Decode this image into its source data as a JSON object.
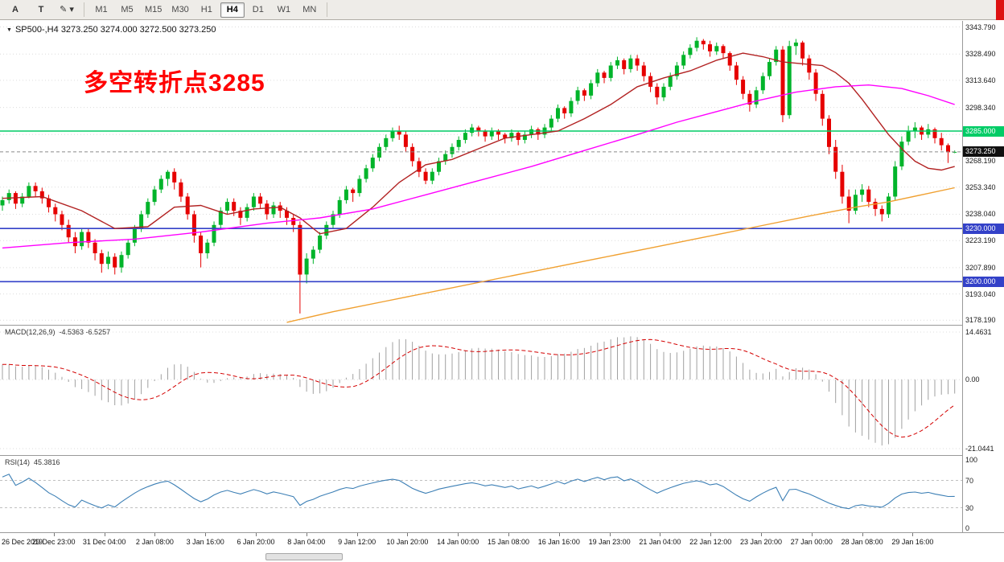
{
  "toolbar": {
    "tool_buttons": [
      {
        "label": "A",
        "name": "tool-a-button"
      },
      {
        "label": "T",
        "name": "tool-text-button"
      },
      {
        "label": "✎ ▾",
        "name": "draw-tools-button"
      }
    ],
    "timeframes": [
      "M1",
      "M5",
      "M15",
      "M30",
      "H1",
      "H4",
      "D1",
      "W1",
      "MN"
    ],
    "active_timeframe": "H4"
  },
  "header": {
    "symbol": "SP500-,H4",
    "ohlc_text": "3273.250 3274.000 3272.500 3273.250"
  },
  "annotation": {
    "text": "多空转折点3285",
    "color": "#ff0000"
  },
  "macd": {
    "label_text": "MACD(12,26,9)",
    "values_text": "-4.5363 -6.5257",
    "fast": 12,
    "slow": 26,
    "signal": 9,
    "axis": [
      {
        "v": 14.4631,
        "t": "14.4631"
      },
      {
        "v": 0,
        "t": "0.00"
      },
      {
        "v": -21.0441,
        "t": "-21.0441"
      }
    ]
  },
  "rsi": {
    "label_text": "RSI(14)",
    "value_text": "45.3816",
    "period": 14,
    "levels": [
      {
        "v": 100,
        "t": "100",
        "dash": false
      },
      {
        "v": 70,
        "t": "70",
        "dash": true
      },
      {
        "v": 30,
        "t": "30",
        "dash": true
      },
      {
        "v": 0,
        "t": "0",
        "dash": false
      }
    ]
  },
  "chart_data": {
    "type": "candlestick",
    "symbol": "SP500-",
    "timeframe": "H4",
    "main": {
      "price_range": [
        3175.6,
        3347.2
      ],
      "bar_start": 3,
      "bar_step": 8.22,
      "candle_width": 5,
      "price_ticks": [
        "3343.790",
        "3328.490",
        "3313.640",
        "3298.340",
        "3283.040",
        "3268.190",
        "3253.340",
        "3238.040",
        "3223.190",
        "3207.890",
        "3193.040",
        "3178.190"
      ]
    },
    "colors": {
      "bull": "#00b42a",
      "bear": "#e60000"
    },
    "hlines": [
      {
        "price": 3285.0,
        "label": "3285.000",
        "color": "#00cc66"
      },
      {
        "price": 3230.0,
        "label": "3230.000",
        "color": "#3341c8"
      },
      {
        "price": 3200.0,
        "label": "3200.000",
        "color": "#3341c8"
      }
    ],
    "current_price": {
      "value": 3273.25,
      "label": "3273.250",
      "badge_color": "#101010"
    },
    "candles": [
      [
        3243,
        3248,
        3240,
        3246
      ],
      [
        3246,
        3252,
        3244,
        3250
      ],
      [
        3250,
        3251,
        3241,
        3244
      ],
      [
        3244,
        3250,
        3242,
        3248
      ],
      [
        3248,
        3256,
        3247,
        3254
      ],
      [
        3254,
        3256,
        3248,
        3251
      ],
      [
        3251,
        3253,
        3244,
        3247
      ],
      [
        3247,
        3249,
        3239,
        3242
      ],
      [
        3242,
        3244,
        3234,
        3238
      ],
      [
        3238,
        3240,
        3229,
        3232
      ],
      [
        3232,
        3235,
        3222,
        3225
      ],
      [
        3225,
        3228,
        3216,
        3220
      ],
      [
        3220,
        3230,
        3218,
        3228
      ],
      [
        3228,
        3230,
        3219,
        3222
      ],
      [
        3222,
        3224,
        3212,
        3216
      ],
      [
        3216,
        3218,
        3205,
        3210
      ],
      [
        3210,
        3217,
        3207,
        3214
      ],
      [
        3214,
        3216,
        3204,
        3208
      ],
      [
        3208,
        3217,
        3205,
        3215
      ],
      [
        3215,
        3224,
        3213,
        3222
      ],
      [
        3222,
        3232,
        3220,
        3230
      ],
      [
        3230,
        3240,
        3228,
        3238
      ],
      [
        3238,
        3247,
        3236,
        3245
      ],
      [
        3245,
        3254,
        3243,
        3252
      ],
      [
        3252,
        3260,
        3250,
        3258
      ],
      [
        3258,
        3263,
        3254,
        3262
      ],
      [
        3262,
        3264,
        3252,
        3256
      ],
      [
        3256,
        3258,
        3245,
        3248
      ],
      [
        3248,
        3250,
        3235,
        3238
      ],
      [
        3238,
        3240,
        3222,
        3226
      ],
      [
        3226,
        3228,
        3208,
        3216
      ],
      [
        3216,
        3224,
        3213,
        3222
      ],
      [
        3222,
        3234,
        3220,
        3232
      ],
      [
        3232,
        3242,
        3230,
        3240
      ],
      [
        3240,
        3247,
        3238,
        3245
      ],
      [
        3245,
        3247,
        3237,
        3240
      ],
      [
        3240,
        3242,
        3232,
        3236
      ],
      [
        3236,
        3244,
        3234,
        3242
      ],
      [
        3242,
        3250,
        3240,
        3248
      ],
      [
        3248,
        3250,
        3241,
        3244
      ],
      [
        3244,
        3246,
        3235,
        3238
      ],
      [
        3238,
        3245,
        3236,
        3243
      ],
      [
        3243,
        3245,
        3236,
        3240
      ],
      [
        3240,
        3242,
        3232,
        3236
      ],
      [
        3236,
        3238,
        3228,
        3232
      ],
      [
        3232,
        3234,
        3182,
        3204
      ],
      [
        3204,
        3216,
        3199,
        3213
      ],
      [
        3213,
        3220,
        3210,
        3218
      ],
      [
        3218,
        3228,
        3216,
        3226
      ],
      [
        3226,
        3234,
        3224,
        3232
      ],
      [
        3232,
        3240,
        3230,
        3238
      ],
      [
        3238,
        3248,
        3236,
        3246
      ],
      [
        3246,
        3254,
        3244,
        3252
      ],
      [
        3252,
        3253,
        3245,
        3250
      ],
      [
        3250,
        3260,
        3248,
        3258
      ],
      [
        3258,
        3266,
        3256,
        3264
      ],
      [
        3264,
        3272,
        3262,
        3270
      ],
      [
        3270,
        3278,
        3268,
        3276
      ],
      [
        3276,
        3283,
        3274,
        3281
      ],
      [
        3281,
        3287,
        3279,
        3285
      ],
      [
        3285,
        3288,
        3280,
        3283
      ],
      [
        3283,
        3285,
        3273,
        3276
      ],
      [
        3276,
        3278,
        3265,
        3268
      ],
      [
        3268,
        3270,
        3259,
        3262
      ],
      [
        3262,
        3264,
        3255,
        3257
      ],
      [
        3257,
        3264,
        3255,
        3262
      ],
      [
        3262,
        3270,
        3260,
        3268
      ],
      [
        3268,
        3274,
        3266,
        3272
      ],
      [
        3272,
        3278,
        3270,
        3276
      ],
      [
        3276,
        3282,
        3274,
        3280
      ],
      [
        3280,
        3286,
        3278,
        3284
      ],
      [
        3284,
        3289,
        3282,
        3287
      ],
      [
        3287,
        3288,
        3282,
        3285
      ],
      [
        3285,
        3286,
        3279,
        3282
      ],
      [
        3282,
        3287,
        3280,
        3285
      ],
      [
        3285,
        3286,
        3280,
        3283
      ],
      [
        3283,
        3284,
        3278,
        3281
      ],
      [
        3281,
        3286,
        3279,
        3284
      ],
      [
        3284,
        3285,
        3277,
        3280
      ],
      [
        3280,
        3285,
        3278,
        3283
      ],
      [
        3283,
        3288,
        3281,
        3286
      ],
      [
        3286,
        3287,
        3280,
        3283
      ],
      [
        3283,
        3289,
        3281,
        3287
      ],
      [
        3287,
        3294,
        3285,
        3292
      ],
      [
        3292,
        3300,
        3290,
        3298
      ],
      [
        3298,
        3299,
        3292,
        3295
      ],
      [
        3295,
        3304,
        3293,
        3302
      ],
      [
        3302,
        3310,
        3300,
        3308
      ],
      [
        3308,
        3309,
        3302,
        3305
      ],
      [
        3305,
        3314,
        3303,
        3312
      ],
      [
        3312,
        3320,
        3310,
        3318
      ],
      [
        3318,
        3319,
        3312,
        3315
      ],
      [
        3315,
        3324,
        3313,
        3322
      ],
      [
        3322,
        3327,
        3320,
        3325
      ],
      [
        3325,
        3326,
        3317,
        3320
      ],
      [
        3320,
        3328,
        3318,
        3326
      ],
      [
        3326,
        3328,
        3319,
        3322
      ],
      [
        3322,
        3324,
        3313,
        3316
      ],
      [
        3316,
        3318,
        3307,
        3310
      ],
      [
        3310,
        3312,
        3300,
        3304
      ],
      [
        3304,
        3312,
        3302,
        3310
      ],
      [
        3310,
        3318,
        3308,
        3316
      ],
      [
        3316,
        3324,
        3314,
        3322
      ],
      [
        3322,
        3330,
        3320,
        3328
      ],
      [
        3328,
        3334,
        3326,
        3332
      ],
      [
        3332,
        3338,
        3330,
        3336
      ],
      [
        3336,
        3337,
        3331,
        3334
      ],
      [
        3334,
        3336,
        3327,
        3330
      ],
      [
        3330,
        3335,
        3328,
        3333
      ],
      [
        3333,
        3334,
        3326,
        3329
      ],
      [
        3329,
        3330,
        3319,
        3322
      ],
      [
        3322,
        3324,
        3311,
        3314
      ],
      [
        3314,
        3316,
        3303,
        3306
      ],
      [
        3306,
        3308,
        3296,
        3300
      ],
      [
        3300,
        3310,
        3298,
        3308
      ],
      [
        3308,
        3318,
        3306,
        3316
      ],
      [
        3316,
        3326,
        3314,
        3324
      ],
      [
        3324,
        3333,
        3322,
        3331
      ],
      [
        3331,
        3333,
        3290,
        3294
      ],
      [
        3294,
        3336,
        3292,
        3333
      ],
      [
        3333,
        3337,
        3328,
        3335
      ],
      [
        3335,
        3336,
        3322,
        3326
      ],
      [
        3326,
        3328,
        3314,
        3318
      ],
      [
        3318,
        3320,
        3302,
        3306
      ],
      [
        3306,
        3308,
        3288,
        3292
      ],
      [
        3292,
        3294,
        3272,
        3276
      ],
      [
        3276,
        3280,
        3258,
        3262
      ],
      [
        3262,
        3266,
        3244,
        3248
      ],
      [
        3248,
        3252,
        3233,
        3240
      ],
      [
        3240,
        3252,
        3238,
        3249
      ],
      [
        3249,
        3255,
        3245,
        3252
      ],
      [
        3252,
        3254,
        3242,
        3245
      ],
      [
        3245,
        3247,
        3237,
        3241
      ],
      [
        3241,
        3243,
        3234,
        3238
      ],
      [
        3238,
        3250,
        3236,
        3248
      ],
      [
        3248,
        3268,
        3246,
        3265
      ],
      [
        3265,
        3282,
        3263,
        3279
      ],
      [
        3279,
        3288,
        3277,
        3285
      ],
      [
        3285,
        3290,
        3281,
        3287
      ],
      [
        3287,
        3288,
        3280,
        3283
      ],
      [
        3283,
        3289,
        3281,
        3286
      ],
      [
        3286,
        3287,
        3278,
        3281
      ],
      [
        3281,
        3284,
        3274,
        3277
      ],
      [
        3277,
        3278,
        3267,
        3273
      ],
      [
        3273.25,
        3274,
        3272.5,
        3273.25
      ]
    ],
    "ma_lines": [
      {
        "name": "ma-fast-red",
        "color": "#b22222",
        "points": [
          [
            0,
            3247
          ],
          [
            6,
            3248
          ],
          [
            12,
            3240
          ],
          [
            17,
            3230
          ],
          [
            22,
            3231
          ],
          [
            26,
            3242
          ],
          [
            30,
            3243
          ],
          [
            34,
            3238
          ],
          [
            38,
            3241
          ],
          [
            42,
            3242
          ],
          [
            45,
            3236
          ],
          [
            48,
            3227
          ],
          [
            52,
            3230
          ],
          [
            56,
            3242
          ],
          [
            60,
            3256
          ],
          [
            64,
            3266
          ],
          [
            68,
            3269
          ],
          [
            72,
            3275
          ],
          [
            76,
            3281
          ],
          [
            80,
            3283
          ],
          [
            84,
            3285
          ],
          [
            88,
            3292
          ],
          [
            92,
            3300
          ],
          [
            96,
            3310
          ],
          [
            100,
            3315
          ],
          [
            104,
            3319
          ],
          [
            108,
            3325
          ],
          [
            112,
            3329
          ],
          [
            115,
            3327
          ],
          [
            118,
            3324
          ],
          [
            121,
            3323
          ],
          [
            124,
            3322
          ],
          [
            126,
            3318
          ],
          [
            128,
            3312
          ],
          [
            130,
            3303
          ],
          [
            132,
            3293
          ],
          [
            134,
            3283
          ],
          [
            136,
            3275
          ],
          [
            138,
            3268
          ],
          [
            140,
            3264
          ],
          [
            142,
            3263
          ],
          [
            144,
            3265
          ]
        ]
      },
      {
        "name": "ma-mid-magenta",
        "color": "#ff00ff",
        "points": [
          [
            0,
            3219
          ],
          [
            10,
            3222
          ],
          [
            20,
            3224
          ],
          [
            30,
            3228
          ],
          [
            40,
            3233
          ],
          [
            48,
            3236
          ],
          [
            56,
            3241
          ],
          [
            64,
            3249
          ],
          [
            72,
            3257
          ],
          [
            80,
            3265
          ],
          [
            88,
            3274
          ],
          [
            96,
            3283
          ],
          [
            102,
            3290
          ],
          [
            108,
            3296
          ],
          [
            114,
            3302
          ],
          [
            120,
            3307
          ],
          [
            126,
            3310
          ],
          [
            131,
            3311
          ],
          [
            136,
            3309
          ],
          [
            140,
            3305
          ],
          [
            144,
            3300
          ]
        ]
      },
      {
        "name": "ma-slow-orange",
        "color": "#f0a030",
        "points": [
          [
            43,
            3177
          ],
          [
            50,
            3183
          ],
          [
            58,
            3189
          ],
          [
            66,
            3195
          ],
          [
            74,
            3201
          ],
          [
            82,
            3207
          ],
          [
            90,
            3213
          ],
          [
            98,
            3219
          ],
          [
            106,
            3225
          ],
          [
            114,
            3231
          ],
          [
            122,
            3237
          ],
          [
            129,
            3242
          ],
          [
            134,
            3245
          ],
          [
            139,
            3249
          ],
          [
            144,
            3253
          ]
        ]
      }
    ],
    "time_labels": [
      "26 Dec 2019",
      "29 Dec 23:00",
      "31 Dec 04:00",
      "2 Jan 08:00",
      "3 Jan 16:00",
      "6 Jan 20:00",
      "8 Jan 04:00",
      "9 Jan 12:00",
      "10 Jan 20:00",
      "14 Jan 00:00",
      "15 Jan 08:00",
      "16 Jan 16:00",
      "19 Jan 23:00",
      "21 Jan 04:00",
      "22 Jan 12:00",
      "23 Jan 20:00",
      "27 Jan 00:00",
      "28 Jan 08:00",
      "29 Jan 16:00"
    ]
  }
}
